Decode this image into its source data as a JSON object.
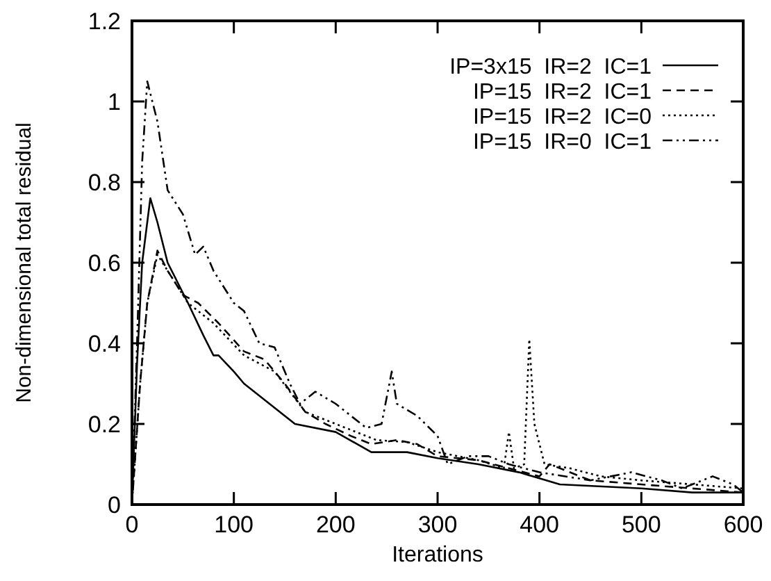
{
  "chart_data": {
    "type": "line",
    "xlabel": "Iterations",
    "ylabel": "Non-dimensional total residual",
    "xlim": [
      0,
      600
    ],
    "ylim": [
      0,
      1.2
    ],
    "xticks": [
      0,
      100,
      200,
      300,
      400,
      500,
      600
    ],
    "yticks": [
      0,
      0.2,
      0.4,
      0.6,
      0.8,
      1,
      1.2
    ],
    "grid": false,
    "legend": "top right",
    "marker": "none",
    "series": [
      {
        "name": "IP=3x15  IR=2  IC=1",
        "color": "#000000",
        "line_style": "solid",
        "x": [
          0,
          5,
          10,
          18,
          25,
          35,
          45,
          55,
          70,
          80,
          85,
          100,
          110,
          135,
          160,
          200,
          235,
          270,
          300,
          340,
          380,
          420,
          500,
          550,
          600
        ],
        "values": [
          0,
          0.35,
          0.6,
          0.76,
          0.7,
          0.6,
          0.55,
          0.5,
          0.42,
          0.37,
          0.37,
          0.33,
          0.3,
          0.25,
          0.2,
          0.18,
          0.13,
          0.13,
          0.115,
          0.1,
          0.08,
          0.05,
          0.04,
          0.03,
          0.03
        ]
      },
      {
        "name": "IP=15  IR=2  IC=1",
        "color": "#000000",
        "line_style": "dashed",
        "x": [
          0,
          8,
          15,
          25,
          35,
          50,
          65,
          85,
          110,
          130,
          150,
          170,
          190,
          215,
          235,
          260,
          280,
          300,
          340,
          370,
          400,
          410,
          450,
          500,
          550,
          600
        ],
        "values": [
          0,
          0.3,
          0.5,
          0.63,
          0.58,
          0.52,
          0.5,
          0.45,
          0.38,
          0.36,
          0.3,
          0.23,
          0.2,
          0.17,
          0.15,
          0.16,
          0.15,
          0.12,
          0.11,
          0.09,
          0.07,
          0.1,
          0.06,
          0.05,
          0.04,
          0.03
        ]
      },
      {
        "name": "IP=15  IR=2  IC=0",
        "color": "#000000",
        "line_style": "dotted",
        "x": [
          0,
          8,
          15,
          25,
          40,
          55,
          80,
          110,
          140,
          170,
          200,
          240,
          270,
          300,
          340,
          365,
          370,
          375,
          385,
          390,
          395,
          405,
          430,
          460,
          500,
          550,
          600
        ],
        "values": [
          0,
          0.3,
          0.5,
          0.62,
          0.56,
          0.5,
          0.45,
          0.37,
          0.33,
          0.23,
          0.2,
          0.16,
          0.155,
          0.13,
          0.11,
          0.09,
          0.18,
          0.09,
          0.1,
          0.41,
          0.2,
          0.1,
          0.09,
          0.07,
          0.06,
          0.05,
          0.04
        ]
      },
      {
        "name": "IP=15  IR=0  IC=1",
        "color": "#000000",
        "line_style": "dashdotdot",
        "x": [
          0,
          5,
          10,
          15,
          25,
          35,
          50,
          62,
          70,
          80,
          100,
          110,
          125,
          140,
          155,
          165,
          180,
          200,
          230,
          245,
          255,
          260,
          280,
          300,
          310,
          330,
          350,
          370,
          400,
          450,
          490,
          520,
          540,
          570,
          590,
          600
        ],
        "values": [
          0,
          0.4,
          0.85,
          1.05,
          0.95,
          0.78,
          0.72,
          0.62,
          0.64,
          0.58,
          0.5,
          0.48,
          0.4,
          0.39,
          0.3,
          0.25,
          0.28,
          0.25,
          0.19,
          0.2,
          0.33,
          0.25,
          0.22,
          0.17,
          0.1,
          0.12,
          0.12,
          0.1,
          0.08,
          0.06,
          0.08,
          0.06,
          0.04,
          0.07,
          0.05,
          0.03
        ]
      }
    ]
  }
}
